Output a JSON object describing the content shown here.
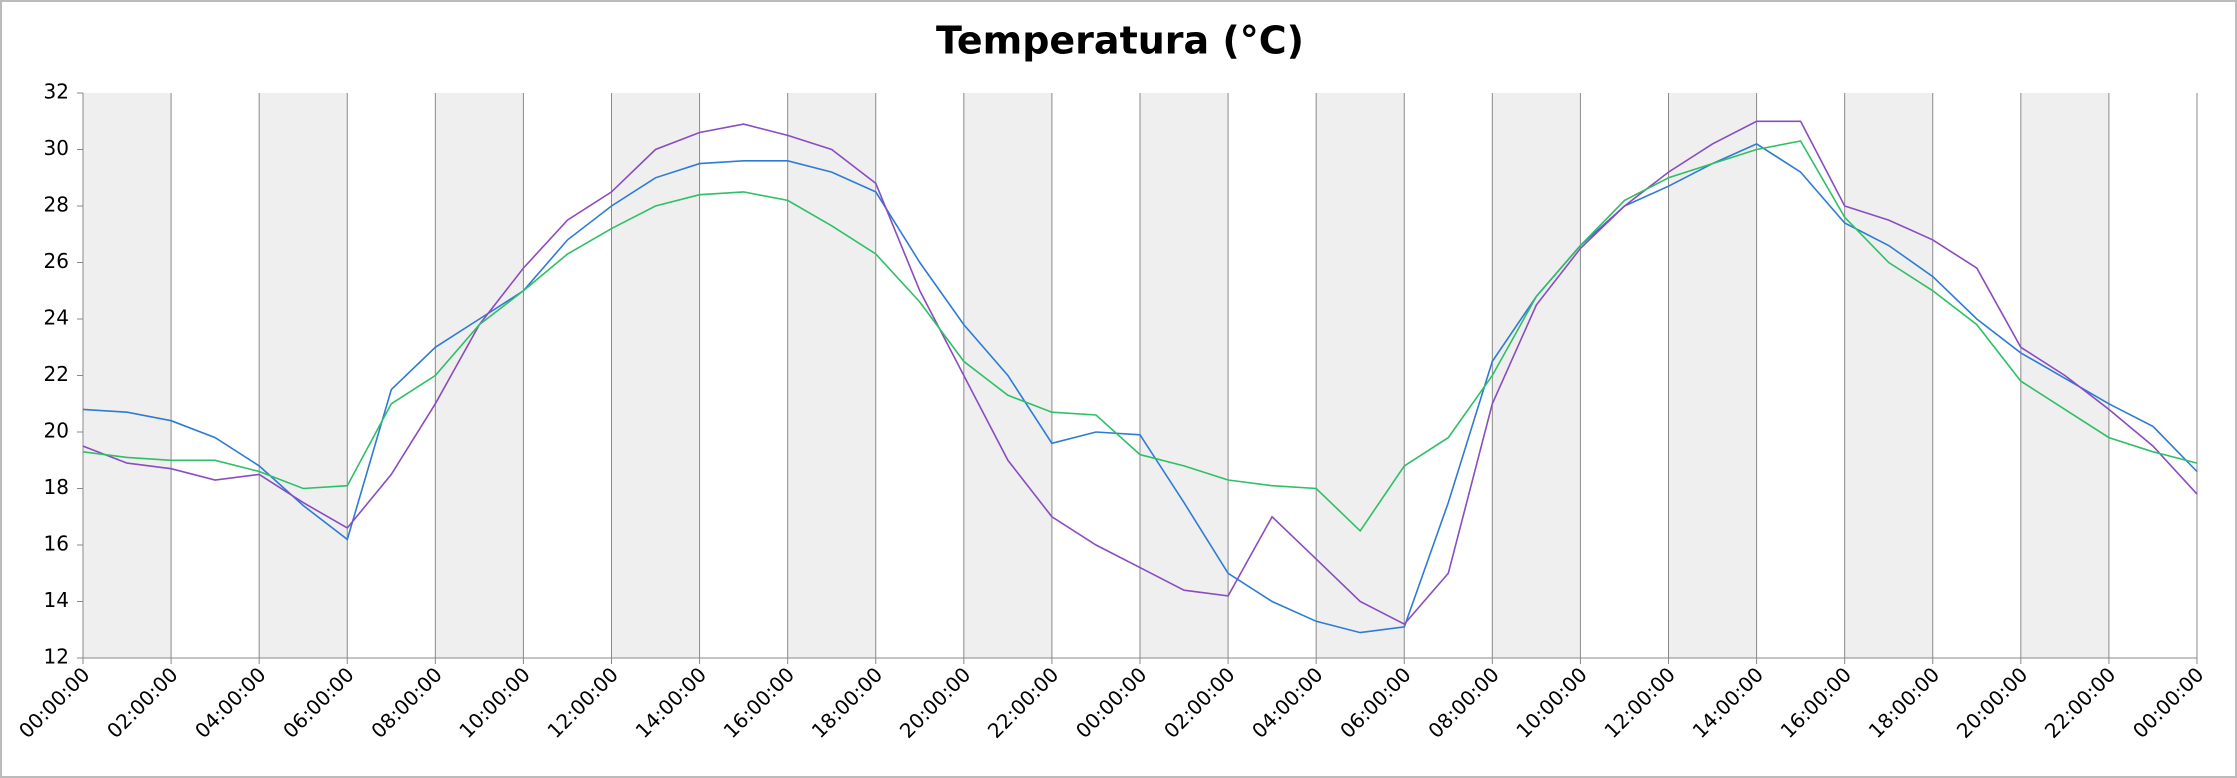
{
  "chart_data": {
    "type": "line",
    "title": "Temperatura (°C)",
    "x": [
      0,
      1,
      2,
      3,
      4,
      5,
      6,
      7,
      8,
      9,
      10,
      11,
      12,
      13,
      14,
      15,
      16,
      17,
      18,
      19,
      20,
      21,
      22,
      23,
      24,
      25,
      26,
      27,
      28,
      29,
      30,
      31,
      32,
      33,
      34,
      35,
      36,
      37,
      38,
      39,
      40,
      41,
      42,
      43,
      44,
      45,
      46,
      47,
      48
    ],
    "xlim": [
      0,
      48
    ],
    "xticks": [
      {
        "value": 0,
        "label": "00:00:00"
      },
      {
        "value": 2,
        "label": "02:00:00"
      },
      {
        "value": 4,
        "label": "04:00:00"
      },
      {
        "value": 6,
        "label": "06:00:00"
      },
      {
        "value": 8,
        "label": "08:00:00"
      },
      {
        "value": 10,
        "label": "10:00:00"
      },
      {
        "value": 12,
        "label": "12:00:00"
      },
      {
        "value": 14,
        "label": "14:00:00"
      },
      {
        "value": 16,
        "label": "16:00:00"
      },
      {
        "value": 18,
        "label": "18:00:00"
      },
      {
        "value": 20,
        "label": "20:00:00"
      },
      {
        "value": 22,
        "label": "22:00:00"
      },
      {
        "value": 24,
        "label": "00:00:00"
      },
      {
        "value": 26,
        "label": "02:00:00"
      },
      {
        "value": 28,
        "label": "04:00:00"
      },
      {
        "value": 30,
        "label": "06:00:00"
      },
      {
        "value": 32,
        "label": "08:00:00"
      },
      {
        "value": 34,
        "label": "10:00:00"
      },
      {
        "value": 36,
        "label": "12:00:00"
      },
      {
        "value": 38,
        "label": "14:00:00"
      },
      {
        "value": 40,
        "label": "16:00:00"
      },
      {
        "value": 42,
        "label": "18:00:00"
      },
      {
        "value": 44,
        "label": "20:00:00"
      },
      {
        "value": 46,
        "label": "22:00:00"
      },
      {
        "value": 48,
        "label": "00:00:00"
      }
    ],
    "ylim": [
      12,
      32
    ],
    "yticks": [
      12,
      14,
      16,
      18,
      20,
      22,
      24,
      26,
      28,
      30,
      32
    ],
    "grid": true,
    "series": [
      {
        "color": "#2e7bd6",
        "values": [
          20.8,
          20.7,
          20.4,
          19.8,
          18.8,
          17.4,
          16.2,
          21.5,
          23.0,
          24.0,
          25.0,
          26.8,
          28.0,
          29.0,
          29.5,
          29.6,
          29.6,
          29.2,
          28.5,
          26.0,
          23.8,
          22.0,
          19.6,
          20.0,
          19.9,
          17.5,
          15.0,
          14.0,
          13.3,
          12.9,
          13.1,
          17.5,
          22.5,
          24.8,
          26.6,
          28.0,
          28.7,
          29.5,
          30.2,
          29.2,
          27.4,
          26.6,
          25.5,
          24.0,
          22.8,
          21.9,
          21.0,
          20.2,
          18.6
        ]
      },
      {
        "color": "#8a4cc0",
        "values": [
          19.5,
          18.9,
          18.7,
          18.3,
          18.5,
          17.5,
          16.6,
          18.5,
          21.0,
          23.8,
          25.8,
          27.5,
          28.5,
          30.0,
          30.6,
          30.9,
          30.5,
          30.0,
          28.8,
          25.0,
          22.0,
          19.0,
          17.0,
          16.0,
          15.2,
          14.4,
          14.2,
          17.0,
          15.5,
          14.0,
          13.2,
          15.0,
          21.0,
          24.5,
          26.5,
          28.0,
          29.2,
          30.2,
          31.0,
          31.0,
          28.0,
          27.5,
          26.8,
          25.8,
          23.0,
          22.0,
          20.8,
          19.5,
          17.8
        ]
      },
      {
        "color": "#2fbf66",
        "values": [
          19.3,
          19.1,
          19.0,
          19.0,
          18.6,
          18.0,
          18.1,
          21.0,
          22.0,
          23.8,
          25.0,
          26.3,
          27.2,
          28.0,
          28.4,
          28.5,
          28.2,
          27.3,
          26.3,
          24.6,
          22.5,
          21.3,
          20.7,
          20.6,
          19.2,
          18.8,
          18.3,
          18.1,
          18.0,
          16.5,
          18.8,
          19.8,
          22.0,
          24.8,
          26.6,
          28.2,
          29.0,
          29.5,
          30.0,
          30.3,
          27.6,
          26.0,
          25.0,
          23.8,
          21.8,
          20.8,
          19.8,
          19.3,
          18.9
        ]
      }
    ]
  }
}
